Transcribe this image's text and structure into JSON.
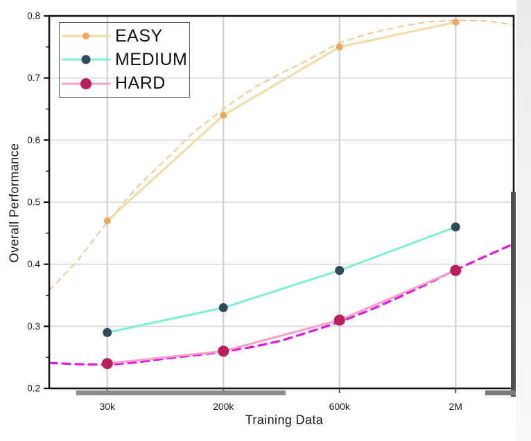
{
  "chart_data": {
    "type": "line",
    "title": "",
    "xlabel": "Training Data",
    "ylabel": "Overall Performance",
    "x_categories": [
      "30k",
      "200k",
      "600k",
      "2M"
    ],
    "ylim": [
      0.2,
      0.8
    ],
    "y_ticks": [
      0.2,
      0.3,
      0.4,
      0.5,
      0.6,
      0.7,
      0.8
    ],
    "y_tick_labels": [
      "0.2",
      "0.3",
      "0.4",
      "0.5",
      "0.6",
      "0.7",
      "0.8"
    ],
    "y_minor_ticks": [
      0.25,
      0.35,
      0.45,
      0.55,
      0.65,
      0.75
    ],
    "grid": true,
    "legend": {
      "position": "top-left",
      "entries": [
        "EASY",
        "MEDIUM",
        "HARD"
      ]
    },
    "series": [
      {
        "name": "EASY",
        "values": [
          0.47,
          0.64,
          0.75,
          0.79
        ],
        "line_color": "#F8D9A4",
        "marker_color": "#EFA95B",
        "marker_radius": 5,
        "fit_line": {
          "style": "dashed",
          "color": "#F3C88E",
          "width": 2,
          "dash": "8 7",
          "points": [
            [
              0,
              0.358
            ],
            [
              0.06,
              0.405
            ],
            [
              0.125,
              0.468
            ],
            [
              0.19,
              0.525
            ],
            [
              0.25,
              0.568
            ],
            [
              0.31,
              0.612
            ],
            [
              0.375,
              0.65
            ],
            [
              0.44,
              0.684
            ],
            [
              0.5,
              0.708
            ],
            [
              0.56,
              0.73
            ],
            [
              0.625,
              0.757
            ],
            [
              0.69,
              0.772
            ],
            [
              0.75,
              0.782
            ],
            [
              0.81,
              0.79
            ],
            [
              0.875,
              0.793
            ],
            [
              0.94,
              0.792
            ],
            [
              1,
              0.786
            ]
          ]
        }
      },
      {
        "name": "MEDIUM",
        "values": [
          0.29,
          0.33,
          0.39,
          0.46
        ],
        "line_color": "#7BEFD7",
        "marker_color": "#314A5B",
        "marker_radius": 6.5,
        "fit_line": null
      },
      {
        "name": "HARD",
        "values": [
          0.24,
          0.26,
          0.31,
          0.39
        ],
        "line_color": "#F99FC7",
        "marker_color": "#BC1E5C",
        "marker_radius": 8,
        "fit_line": {
          "style": "dashed",
          "color": "#EB10E3",
          "width": 3.2,
          "dash": "11 8",
          "points": [
            [
              0,
              0.241
            ],
            [
              0.06,
              0.239
            ],
            [
              0.125,
              0.238
            ],
            [
              0.19,
              0.242
            ],
            [
              0.25,
              0.248
            ],
            [
              0.31,
              0.253
            ],
            [
              0.375,
              0.259
            ],
            [
              0.44,
              0.267
            ],
            [
              0.5,
              0.277
            ],
            [
              0.56,
              0.291
            ],
            [
              0.625,
              0.307
            ],
            [
              0.69,
              0.326
            ],
            [
              0.75,
              0.346
            ],
            [
              0.81,
              0.367
            ],
            [
              0.875,
              0.391
            ],
            [
              0.94,
              0.413
            ],
            [
              1,
              0.433
            ]
          ]
        }
      }
    ]
  },
  "colors": {
    "background": "#FFFFFF",
    "grid_horizontal": "#DADADA",
    "grid_vertical": "#D4D4D4",
    "spine": "#141414",
    "y_tick": "#111111",
    "x_tick": "#555555",
    "tick_label": "#1A1A1A",
    "scroll_vertical_thumb": "#4F4F4F",
    "scroll_horizontal_thumb": "#8C8C8C",
    "right_gutter": "#F0F0F0"
  }
}
